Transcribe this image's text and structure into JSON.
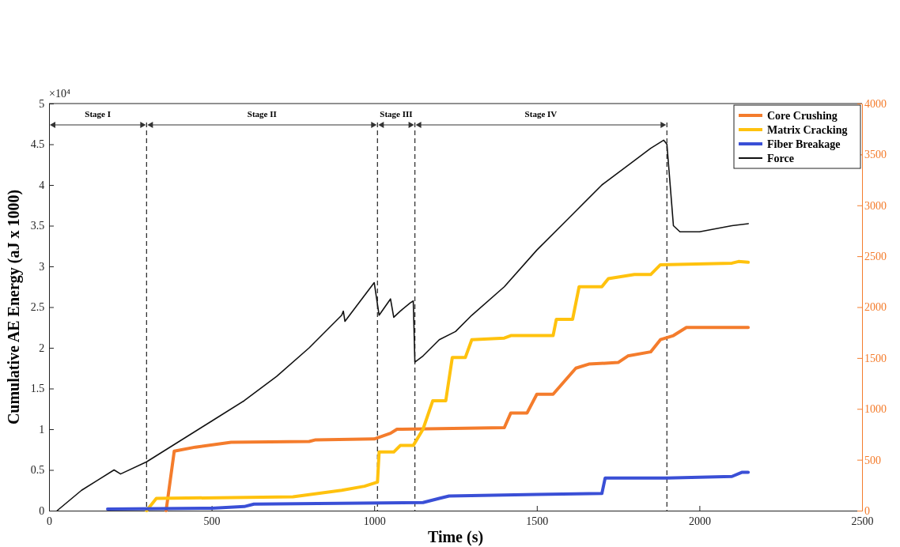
{
  "chart_data": {
    "type": "line",
    "xlabel": "Time (s)",
    "ylabel": "Cumulative AE Energy (aJ x 1000)",
    "xlim": [
      0,
      2500
    ],
    "xticks": [
      0,
      500,
      1000,
      1500,
      2000,
      2500
    ],
    "ylim": [
      0,
      5
    ],
    "yticks": [
      0,
      0.5,
      1,
      1.5,
      2,
      2.5,
      3,
      3.5,
      4,
      4.5,
      5
    ],
    "y2lim": [
      0,
      4000
    ],
    "y2ticks": [
      0,
      500,
      1000,
      1500,
      2000,
      2500,
      3000,
      3500,
      4000
    ],
    "legend": "top right",
    "grid": false,
    "marker": "none",
    "line_style": "solid",
    "series": [
      {
        "name": "Core Crushing",
        "color": "#f47c2c",
        "x": [
          360,
          385,
          450,
          560,
          800,
          820,
          1000,
          1050,
          1070,
          1400,
          1420,
          1470,
          1500,
          1550,
          1620,
          1660,
          1750,
          1780,
          1850,
          1880,
          1920,
          1960,
          2150
        ],
        "values": [
          0,
          0.73,
          0.78,
          0.84,
          0.85,
          0.87,
          0.88,
          0.95,
          1.0,
          1.02,
          1.2,
          1.2,
          1.43,
          1.43,
          1.75,
          1.8,
          1.82,
          1.9,
          1.95,
          2.1,
          2.15,
          2.25,
          2.25
        ]
      },
      {
        "name": "Matrix Cracking",
        "color": "#ffc20e",
        "x": [
          300,
          330,
          750,
          900,
          970,
          1010,
          1015,
          1060,
          1080,
          1120,
          1150,
          1180,
          1220,
          1240,
          1280,
          1300,
          1400,
          1420,
          1550,
          1560,
          1610,
          1630,
          1700,
          1720,
          1800,
          1850,
          1880,
          2100,
          2120,
          2150
        ],
        "values": [
          0,
          0.15,
          0.17,
          0.25,
          0.3,
          0.35,
          0.72,
          0.72,
          0.8,
          0.8,
          1.0,
          1.35,
          1.35,
          1.88,
          1.88,
          2.1,
          2.12,
          2.15,
          2.15,
          2.35,
          2.35,
          2.75,
          2.75,
          2.85,
          2.9,
          2.9,
          3.02,
          3.04,
          3.06,
          3.05
        ]
      },
      {
        "name": "Fiber Breakage",
        "color": "#3a4fd6",
        "x": [
          180,
          500,
          600,
          630,
          1150,
          1200,
          1230,
          1500,
          1700,
          1710,
          1900,
          2100,
          2130,
          2150
        ],
        "values": [
          0.02,
          0.03,
          0.05,
          0.08,
          0.1,
          0.15,
          0.18,
          0.2,
          0.21,
          0.4,
          0.4,
          0.42,
          0.47,
          0.47
        ]
      },
      {
        "name": "Force",
        "color": "#111111",
        "axis": "y2",
        "x": [
          25,
          100,
          150,
          200,
          220,
          300,
          500,
          600,
          700,
          800,
          900,
          905,
          910,
          1000,
          1015,
          1050,
          1060,
          1080,
          1110,
          1120,
          1125,
          1150,
          1200,
          1250,
          1300,
          1400,
          1500,
          1600,
          1700,
          1800,
          1850,
          1890,
          1900,
          1910,
          1920,
          1940,
          2000,
          2100,
          2150
        ],
        "values": [
          0,
          200,
          300,
          400,
          360,
          480,
          880,
          1080,
          1320,
          1600,
          1920,
          1960,
          1860,
          2240,
          1920,
          2080,
          1900,
          1960,
          2040,
          2060,
          1460,
          1520,
          1680,
          1760,
          1920,
          2200,
          2560,
          2880,
          3200,
          3440,
          3560,
          3640,
          3600,
          3200,
          2800,
          2740,
          2740,
          2800,
          2820
        ]
      }
    ],
    "ref_lines": [
      {
        "axis": "x",
        "value": 300,
        "line_style": "dashed"
      },
      {
        "axis": "x",
        "value": 1010,
        "line_style": "dashed"
      },
      {
        "axis": "x",
        "value": 1125,
        "line_style": "dashed"
      },
      {
        "axis": "x",
        "value": 1900,
        "line_style": "dashed"
      }
    ],
    "annotations": [
      "×10⁴",
      "Stage I",
      "Stage II",
      "Stage III",
      "Stage IV"
    ]
  }
}
